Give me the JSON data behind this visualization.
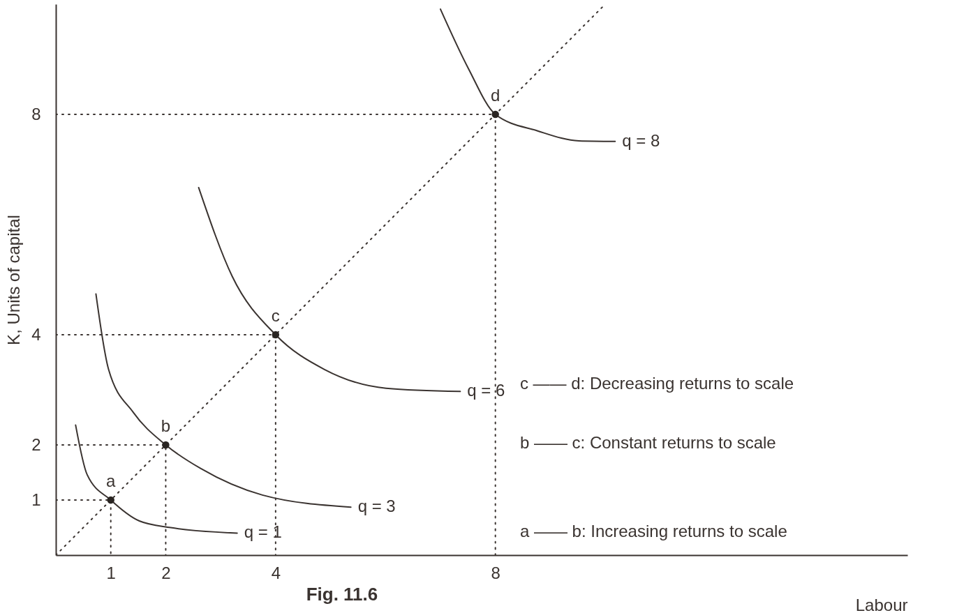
{
  "chart_data": {
    "type": "line",
    "title": "Fig. 11.6",
    "xlabel": "Labour",
    "ylabel": "K, Units of capital",
    "xlim": [
      0,
      15.5
    ],
    "ylim": [
      0,
      10
    ],
    "xticks": [
      1,
      2,
      4,
      8
    ],
    "yticks": [
      1,
      2,
      4,
      8
    ],
    "grid": false,
    "marker": "none",
    "series": [
      {
        "name": "q = 1",
        "color": "#3a3330",
        "line_style": "solid",
        "x": [
          0.36,
          0.57,
          1,
          1.52,
          2.09,
          3.3
        ],
        "values": [
          2.36,
          1.46,
          1,
          0.62,
          0.5,
          0.4
        ]
      },
      {
        "name": "q = 3",
        "color": "#3a3330",
        "line_style": "solid",
        "x": [
          0.73,
          0.96,
          1.41,
          2,
          2.64,
          3.76,
          5.37
        ],
        "values": [
          4.74,
          3.37,
          2.59,
          2,
          1.57,
          1.09,
          0.87
        ]
      },
      {
        "name": "q = 6",
        "color": "#3a3330",
        "line_style": "solid",
        "x": [
          2.6,
          3.21,
          4,
          4.89,
          6.01,
          7.36
        ],
        "values": [
          6.67,
          5.06,
          4,
          3.37,
          3.03,
          2.97
        ]
      },
      {
        "name": "q = 8",
        "color": "#3a3330",
        "line_style": "solid",
        "x": [
          7,
          7.51,
          8,
          8.77,
          9.52,
          10.18
        ],
        "values": [
          9.91,
          8.83,
          8,
          7.7,
          7.52,
          7.51
        ]
      },
      {
        "color": "#3a3330",
        "line_style": "dotted",
        "x": [
          0,
          10
        ],
        "values": [
          0,
          10
        ]
      },
      {
        "color": "#3a3330",
        "line_style": "dotted",
        "x": [
          0,
          1,
          1
        ],
        "values": [
          1,
          1,
          0
        ]
      },
      {
        "color": "#3a3330",
        "line_style": "dotted",
        "x": [
          0,
          2,
          2
        ],
        "values": [
          2,
          2,
          0
        ]
      },
      {
        "color": "#3a3330",
        "line_style": "dotted",
        "x": [
          0,
          4,
          4
        ],
        "values": [
          4,
          4,
          0
        ]
      },
      {
        "color": "#3a3330",
        "line_style": "dotted",
        "x": [
          0,
          8,
          8
        ],
        "values": [
          8,
          8,
          0
        ]
      },
      {
        "type": "scatter",
        "color": "#2a2522",
        "marker": "circle",
        "x": [
          1,
          2,
          4,
          8
        ],
        "values": [
          1,
          2,
          4,
          8
        ]
      }
    ],
    "annotations": [
      {
        "text": "a",
        "x": 1,
        "y": 1
      },
      {
        "text": "b",
        "x": 2,
        "y": 2
      },
      {
        "text": "c",
        "x": 4,
        "y": 4
      },
      {
        "text": "d",
        "x": 8,
        "y": 8
      },
      "c —— d: Decreasing returns to scale",
      "b —— c: Constant returns to scale",
      "a —— b: Increasing returns to scale"
    ]
  }
}
